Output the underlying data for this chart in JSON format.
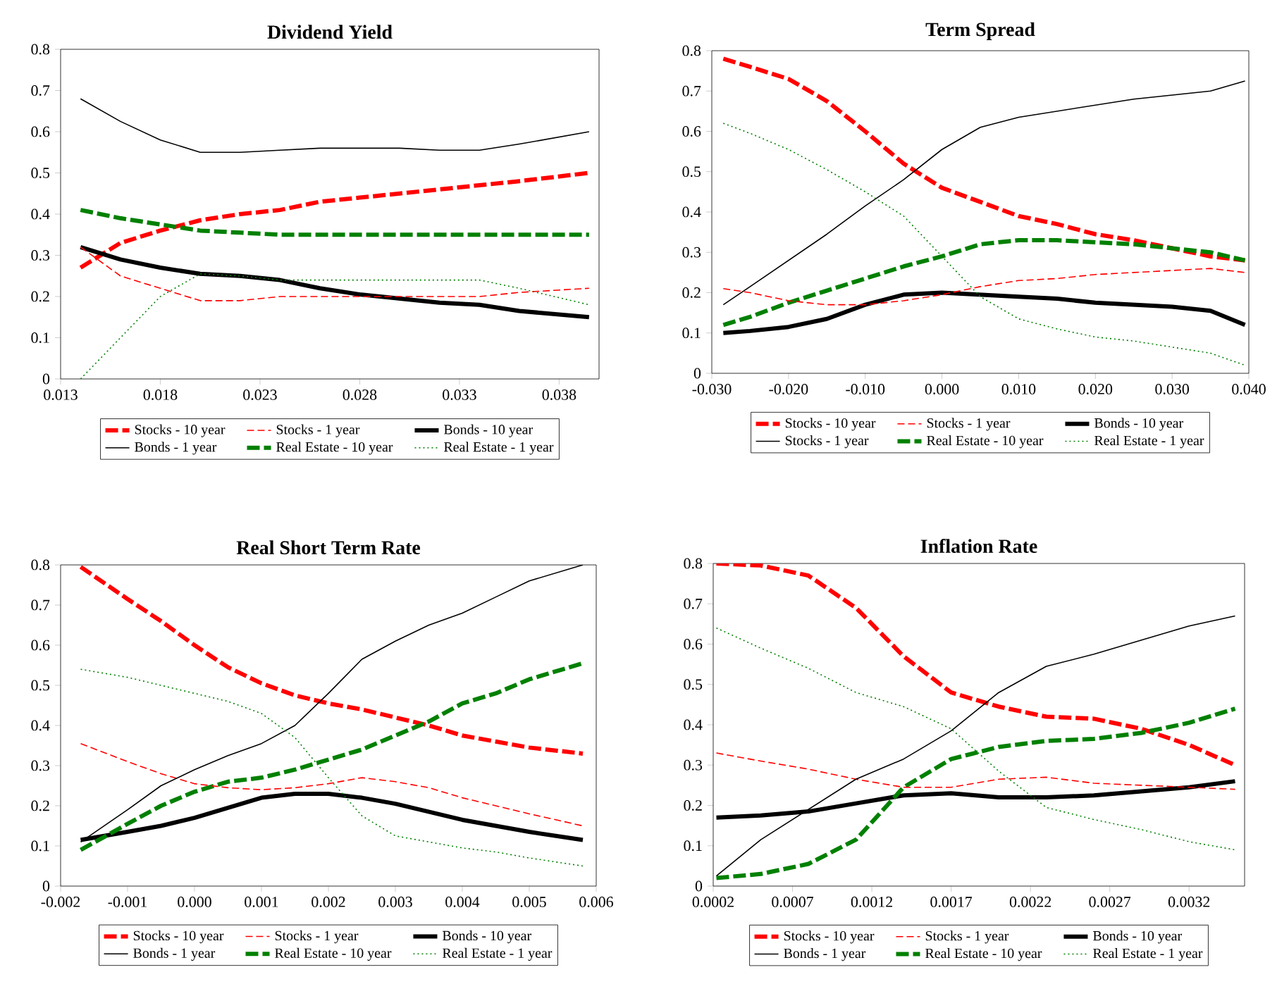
{
  "chart_data": [
    {
      "type": "line",
      "title": "Dividend Yield",
      "legend": "bottom",
      "x": [
        0.014,
        0.016,
        0.018,
        0.02,
        0.022,
        0.024,
        0.026,
        0.028,
        0.03,
        0.032,
        0.034,
        0.036,
        0.0395
      ],
      "xlim": [
        0.013,
        0.04
      ],
      "xticks": [
        0.013,
        0.018,
        0.023,
        0.028,
        0.033,
        0.038
      ],
      "ylim": [
        0,
        0.8
      ],
      "yticks": [
        0,
        0.1,
        0.2,
        0.3,
        0.4,
        0.5,
        0.6,
        0.7,
        0.8
      ],
      "series": [
        {
          "name": "Stocks  - 10 year",
          "color": "#ff0000",
          "line_style": "dashed",
          "values": [
            0.27,
            0.33,
            0.36,
            0.385,
            0.4,
            0.41,
            0.43,
            0.44,
            0.45,
            0.46,
            0.47,
            0.48,
            0.5
          ]
        },
        {
          "name": "Stocks - 1 year",
          "color": "#ff0000",
          "line_style": "dashed",
          "values": [
            0.32,
            0.25,
            0.22,
            0.19,
            0.19,
            0.2,
            0.2,
            0.2,
            0.2,
            0.2,
            0.2,
            0.21,
            0.22
          ]
        },
        {
          "name": "Bonds - 10 year",
          "color": "#000000",
          "line_style": "solid",
          "values": [
            0.32,
            0.29,
            0.27,
            0.255,
            0.25,
            0.24,
            0.22,
            0.205,
            0.195,
            0.185,
            0.18,
            0.165,
            0.15
          ]
        },
        {
          "name": "Bonds - 1 year",
          "color": "#000000",
          "line_style": "solid",
          "values": [
            0.68,
            0.625,
            0.58,
            0.55,
            0.55,
            0.555,
            0.56,
            0.56,
            0.56,
            0.555,
            0.555,
            0.57,
            0.6
          ]
        },
        {
          "name": "Real Estate - 10 year",
          "color": "#008000",
          "line_style": "dashed",
          "values": [
            0.41,
            0.39,
            0.375,
            0.36,
            0.355,
            0.35,
            0.35,
            0.35,
            0.35,
            0.35,
            0.35,
            0.35,
            0.35
          ]
        },
        {
          "name": "Real Estate - 1 year",
          "color": "#008000",
          "line_style": "dotted",
          "values": [
            0,
            0.1,
            0.2,
            0.255,
            0.25,
            0.24,
            0.24,
            0.24,
            0.24,
            0.24,
            0.24,
            0.22,
            0.18
          ]
        }
      ]
    },
    {
      "type": "line",
      "title": "Term Spread",
      "legend": "bottom",
      "x": [
        -0.0285,
        -0.025,
        -0.02,
        -0.015,
        -0.01,
        -0.005,
        0.0,
        0.005,
        0.01,
        0.015,
        0.02,
        0.025,
        0.03,
        0.035,
        0.0395
      ],
      "xlim": [
        -0.03,
        0.04
      ],
      "xticks": [
        {
          "value": -0.03,
          "label": "-0.030"
        },
        {
          "value": -0.02,
          "label": "-0.020"
        },
        {
          "value": -0.01,
          "label": "-0.010"
        },
        {
          "value": 0,
          "label": "0.000"
        },
        {
          "value": 0.01,
          "label": "0.010"
        },
        {
          "value": 0.02,
          "label": "0.020"
        },
        {
          "value": 0.03,
          "label": "0.030"
        },
        {
          "value": 0.04,
          "label": "0.040"
        }
      ],
      "ylim": [
        0,
        0.8
      ],
      "yticks": [
        0,
        0.1,
        0.2,
        0.3,
        0.4,
        0.5,
        0.6,
        0.7,
        0.8
      ],
      "series": [
        {
          "name": "Stocks  - 10 year",
          "color": "#ff0000",
          "line_style": "dashed",
          "values": [
            0.78,
            0.76,
            0.73,
            0.675,
            0.6,
            0.52,
            0.46,
            0.425,
            0.39,
            0.37,
            0.345,
            0.33,
            0.31,
            0.29,
            0.28
          ]
        },
        {
          "name": "Stocks - 1 year",
          "color": "#ff0000",
          "line_style": "dashed",
          "values": [
            0.21,
            0.2,
            0.18,
            0.17,
            0.17,
            0.18,
            0.195,
            0.215,
            0.23,
            0.235,
            0.245,
            0.25,
            0.255,
            0.26,
            0.25
          ]
        },
        {
          "name": "Bonds - 10 year",
          "color": "#000000",
          "line_style": "solid",
          "values": [
            0.1,
            0.105,
            0.115,
            0.135,
            0.17,
            0.195,
            0.2,
            0.195,
            0.19,
            0.185,
            0.175,
            0.17,
            0.165,
            0.155,
            0.12
          ]
        },
        {
          "name": "Stocks - 1 year",
          "color": "#000000",
          "line_style": "solid",
          "values": [
            0.17,
            0.215,
            0.28,
            0.345,
            0.415,
            0.48,
            0.555,
            0.61,
            0.635,
            0.65,
            0.665,
            0.68,
            0.69,
            0.7,
            0.725
          ]
        },
        {
          "name": "Real Estate - 10 year",
          "color": "#008000",
          "line_style": "dashed",
          "values": [
            0.12,
            0.14,
            0.175,
            0.205,
            0.235,
            0.265,
            0.29,
            0.32,
            0.33,
            0.33,
            0.325,
            0.32,
            0.31,
            0.3,
            0.28
          ]
        },
        {
          "name": "Real Estate - 1 year",
          "color": "#008000",
          "line_style": "dotted",
          "values": [
            0.62,
            0.595,
            0.555,
            0.505,
            0.45,
            0.39,
            0.29,
            0.19,
            0.135,
            0.11,
            0.09,
            0.08,
            0.065,
            0.05,
            0.02
          ]
        }
      ]
    },
    {
      "type": "line",
      "title": "Real Short Term Rate",
      "legend": "bottom",
      "x": [
        -0.0017,
        -0.001,
        -0.0005,
        0,
        0.0005,
        0.001,
        0.0015,
        0.002,
        0.0025,
        0.003,
        0.0035,
        0.004,
        0.0045,
        0.005,
        0.0058
      ],
      "xlim": [
        -0.002,
        0.006
      ],
      "xticks": [
        {
          "value": -0.002,
          "label": "-0.002"
        },
        {
          "value": -0.001,
          "label": "-0.001"
        },
        {
          "value": 0,
          "label": "0.000"
        },
        {
          "value": 0.001,
          "label": "0.001"
        },
        {
          "value": 0.002,
          "label": "0.002"
        },
        {
          "value": 0.003,
          "label": "0.003"
        },
        {
          "value": 0.004,
          "label": "0.004"
        },
        {
          "value": 0.005,
          "label": "0.005"
        },
        {
          "value": 0.006,
          "label": "0.006"
        }
      ],
      "ylim": [
        0,
        0.8
      ],
      "yticks": [
        0,
        0.1,
        0.2,
        0.3,
        0.4,
        0.5,
        0.6,
        0.7,
        0.8
      ],
      "series": [
        {
          "name": "Stocks - 10 year",
          "color": "#ff0000",
          "line_style": "dashed",
          "values": [
            0.795,
            0.715,
            0.66,
            0.6,
            0.545,
            0.505,
            0.475,
            0.455,
            0.44,
            0.42,
            0.4,
            0.375,
            0.36,
            0.345,
            0.33
          ]
        },
        {
          "name": "Stocks - 1 year",
          "color": "#ff0000",
          "line_style": "dashed",
          "values": [
            0.355,
            0.31,
            0.28,
            0.255,
            0.245,
            0.24,
            0.245,
            0.255,
            0.27,
            0.26,
            0.245,
            0.22,
            0.2,
            0.18,
            0.15
          ]
        },
        {
          "name": "Bonds - 10 year",
          "color": "#000000",
          "line_style": "solid",
          "values": [
            0.115,
            0.135,
            0.15,
            0.17,
            0.195,
            0.22,
            0.23,
            0.23,
            0.22,
            0.205,
            0.185,
            0.165,
            0.15,
            0.135,
            0.115
          ]
        },
        {
          "name": "Bonds - 1 year",
          "color": "#000000",
          "line_style": "solid",
          "values": [
            0.11,
            0.19,
            0.25,
            0.29,
            0.325,
            0.355,
            0.4,
            0.48,
            0.565,
            0.61,
            0.65,
            0.68,
            0.72,
            0.76,
            0.8
          ]
        },
        {
          "name": "Real Estate - 10 year",
          "color": "#008000",
          "line_style": "dashed",
          "values": [
            0.09,
            0.155,
            0.2,
            0.235,
            0.26,
            0.27,
            0.29,
            0.315,
            0.34,
            0.375,
            0.41,
            0.455,
            0.48,
            0.515,
            0.555
          ]
        },
        {
          "name": "Real Estate - 1 year",
          "color": "#008000",
          "line_style": "dotted",
          "values": [
            0.54,
            0.52,
            0.5,
            0.48,
            0.46,
            0.43,
            0.37,
            0.27,
            0.175,
            0.125,
            0.11,
            0.095,
            0.085,
            0.07,
            0.05
          ]
        }
      ]
    },
    {
      "type": "line",
      "title": "Inflation Rate",
      "legend": "bottom",
      "x": [
        0.00022,
        0.0005,
        0.0008,
        0.0011,
        0.0014,
        0.0017,
        0.002,
        0.0023,
        0.0026,
        0.0029,
        0.0032,
        0.00349
      ],
      "xlim": [
        0.0002,
        0.00355
      ],
      "xticks": [
        0.0002,
        0.0007,
        0.0012,
        0.0017,
        0.0022,
        0.0027,
        0.0032
      ],
      "ylim": [
        0,
        0.8
      ],
      "yticks": [
        0,
        0.1,
        0.2,
        0.3,
        0.4,
        0.5,
        0.6,
        0.7,
        0.8
      ],
      "series": [
        {
          "name": "Stocks - 10 year",
          "color": "#ff0000",
          "line_style": "dashed",
          "values": [
            0.8,
            0.795,
            0.77,
            0.69,
            0.57,
            0.48,
            0.445,
            0.42,
            0.415,
            0.39,
            0.35,
            0.3
          ]
        },
        {
          "name": "Stocks - 1 year",
          "color": "#ff0000",
          "line_style": "dashed",
          "values": [
            0.33,
            0.31,
            0.29,
            0.265,
            0.245,
            0.245,
            0.265,
            0.27,
            0.255,
            0.25,
            0.245,
            0.24
          ]
        },
        {
          "name": "Bonds - 10 year",
          "color": "#000000",
          "line_style": "solid",
          "values": [
            0.17,
            0.175,
            0.185,
            0.205,
            0.225,
            0.23,
            0.22,
            0.22,
            0.225,
            0.235,
            0.245,
            0.26
          ]
        },
        {
          "name": "Bonds - 1 year",
          "color": "#000000",
          "line_style": "solid",
          "values": [
            0.025,
            0.115,
            0.19,
            0.265,
            0.315,
            0.385,
            0.48,
            0.545,
            0.575,
            0.61,
            0.645,
            0.67
          ]
        },
        {
          "name": "Real Estate - 10 year",
          "color": "#008000",
          "line_style": "dashed",
          "values": [
            0.02,
            0.03,
            0.055,
            0.115,
            0.245,
            0.315,
            0.345,
            0.36,
            0.365,
            0.38,
            0.405,
            0.44
          ]
        },
        {
          "name": "Real Estate - 1 year",
          "color": "#008000",
          "line_style": "dotted",
          "values": [
            0.64,
            0.59,
            0.54,
            0.48,
            0.445,
            0.39,
            0.285,
            0.195,
            0.165,
            0.14,
            0.11,
            0.09
          ]
        }
      ]
    }
  ]
}
